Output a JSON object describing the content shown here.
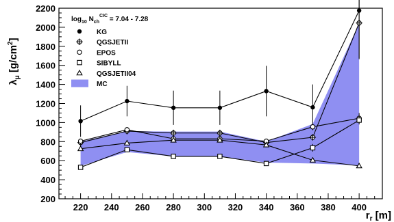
{
  "chart_data": {
    "type": "line",
    "title": "",
    "ylabel_main": "λ",
    "ylabel_sub": "μ",
    "ylabel_unit": " [g/cm",
    "ylabel_sup": "2",
    "ylabel_close": "]",
    "xlabel_main": "r",
    "xlabel_sub": "r",
    "xlabel_unit": " [m]",
    "xlim": [
      206,
      415
    ],
    "ylim": [
      200,
      2200
    ],
    "xticks": [
      220,
      240,
      260,
      280,
      300,
      320,
      340,
      360,
      380,
      400
    ],
    "yticks": [
      200,
      400,
      600,
      800,
      1000,
      1200,
      1400,
      1600,
      1800,
      2000,
      2200
    ],
    "grid": false,
    "legend_position": "top-left",
    "legend_title": {
      "prefix": "log",
      "prefix_sub": "10",
      "mid": " N",
      "mid_sub": "ch",
      "mid_sup": "CIC",
      "suffix": " = 7.04 - 7.28"
    },
    "x": [
      220,
      250,
      280,
      310,
      340,
      370,
      400
    ],
    "series": [
      {
        "name": "KG",
        "marker": "filled-circle",
        "values": [
          1015,
          1225,
          1155,
          1155,
          1330,
          1160,
          2175
        ],
        "err": [
          165,
          160,
          180,
          180,
          265,
          240,
          500
        ]
      },
      {
        "name": "QGSJETII",
        "marker": "cross-circle",
        "values": [
          790,
          910,
          890,
          890,
          790,
          845,
          2045
        ],
        "err": [
          30,
          30,
          35,
          35,
          30,
          30,
          380
        ]
      },
      {
        "name": "EPOS",
        "marker": "open-circle",
        "values": [
          805,
          925,
          830,
          830,
          805,
          955,
          1045
        ],
        "err": [
          25,
          25,
          25,
          25,
          25,
          30,
          55
        ]
      },
      {
        "name": "SIBYLL",
        "marker": "open-square",
        "values": [
          530,
          715,
          645,
          645,
          570,
          735,
          1025
        ],
        "err": [
          15,
          20,
          15,
          15,
          15,
          40,
          45
        ]
      },
      {
        "name": "QGSJETII04",
        "marker": "open-triangle",
        "values": [
          725,
          785,
          815,
          815,
          765,
          605,
          545
        ],
        "err": [
          20,
          20,
          20,
          20,
          20,
          15,
          20
        ]
      }
    ],
    "mc_band": {
      "name": "MC",
      "color": "#8f8ff2",
      "upper": [
        800,
        910,
        905,
        905,
        800,
        985,
        2040
      ],
      "lower": [
        545,
        690,
        645,
        645,
        580,
        570,
        550
      ]
    }
  }
}
